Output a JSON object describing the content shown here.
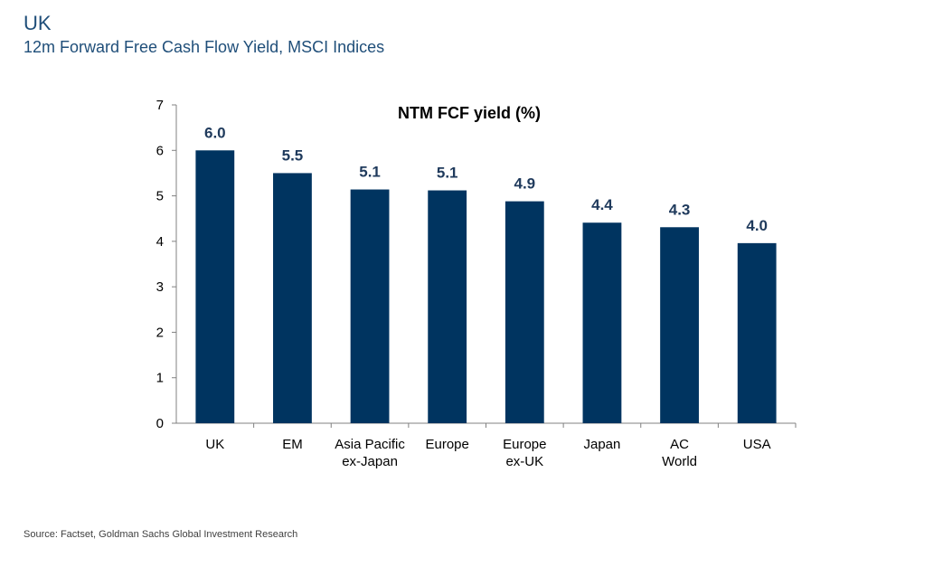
{
  "header": {
    "title": "UK",
    "subtitle": "12m Forward Free Cash Flow Yield, MSCI Indices"
  },
  "source": "Source: Factset, Goldman Sachs Global Investment Research",
  "chart_data": {
    "type": "bar",
    "title": "NTM FCF yield (%)",
    "categories": [
      [
        "UK"
      ],
      [
        "EM"
      ],
      [
        "Asia Pacific",
        "ex-Japan"
      ],
      [
        "Europe"
      ],
      [
        "Europe",
        "ex-UK"
      ],
      [
        "Japan"
      ],
      [
        "AC",
        "World"
      ],
      [
        "USA"
      ]
    ],
    "values": [
      6.0,
      5.5,
      5.14,
      5.12,
      4.88,
      4.41,
      4.31,
      3.96
    ],
    "data_labels": [
      "6.0",
      "5.5",
      "5.1",
      "5.1",
      "4.9",
      "4.4",
      "4.3",
      "4.0"
    ],
    "ylim": [
      0,
      7
    ],
    "yticks": [
      "0",
      "1",
      "2",
      "3",
      "4",
      "5",
      "6",
      "7"
    ],
    "xlabel": "",
    "ylabel": "",
    "grid": false,
    "bar_color": "#003460",
    "label_color": "#1f3a5c"
  }
}
